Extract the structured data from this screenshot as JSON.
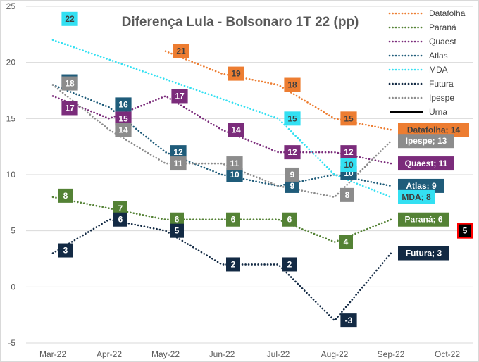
{
  "chart_data": {
    "type": "line",
    "title": "Diferença Lula - Bolsonaro 1T 22 (pp)",
    "xlabel": "",
    "ylabel": "",
    "categories": [
      "Mar-22",
      "Apr-22",
      "May-22",
      "Jun-22",
      "Jul-22",
      "Aug-22",
      "Sep-22",
      "Oct-22"
    ],
    "ylim": [
      -5,
      25
    ],
    "yticks": [
      -5,
      0,
      5,
      10,
      15,
      20,
      25
    ],
    "grid": true,
    "legend_position": "top-right",
    "series": [
      {
        "name": "Datafolha",
        "color": "#ED7D31",
        "label_text_color": "#404040",
        "values": [
          null,
          null,
          21,
          19,
          18,
          15,
          14,
          null
        ],
        "end_label": "Datafolha; 14"
      },
      {
        "name": "Paraná",
        "color": "#548235",
        "label_text_color": "#ffffff",
        "values": [
          8,
          7,
          6,
          6,
          6,
          4,
          6,
          null
        ],
        "end_label": "Paraná; 6"
      },
      {
        "name": "Quaest",
        "color": "#7B2C7B",
        "label_text_color": "#ffffff",
        "values": [
          17,
          15,
          17,
          14,
          12,
          12,
          11,
          null
        ],
        "end_label": "Quaest; 11"
      },
      {
        "name": "Atlas",
        "color": "#1F5C7A",
        "label_text_color": "#ffffff",
        "values": [
          18,
          16,
          12,
          10,
          9,
          10,
          9,
          null
        ],
        "end_label": "Atlas; 9"
      },
      {
        "name": "MDA",
        "color": "#33E0F2",
        "label_text_color": "#404040",
        "values": [
          22,
          null,
          null,
          null,
          15,
          10,
          8,
          null
        ],
        "end_label": "MDA; 8"
      },
      {
        "name": "Futura",
        "color": "#132A44",
        "label_text_color": "#ffffff",
        "values": [
          3,
          6,
          5,
          2,
          2,
          -3,
          3,
          null
        ],
        "end_label": "Futura; 3"
      },
      {
        "name": "Ipespe",
        "color": "#8C8C8C",
        "label_text_color": "#ffffff",
        "values": [
          18,
          14,
          11,
          11,
          9,
          8,
          13,
          null
        ],
        "end_label": "Ipespe; 13"
      },
      {
        "name": "Urna",
        "color": "#000000",
        "label_text_color": "#ffffff",
        "values": [
          null,
          null,
          null,
          null,
          null,
          null,
          null,
          5
        ],
        "end_label": "5"
      }
    ]
  }
}
